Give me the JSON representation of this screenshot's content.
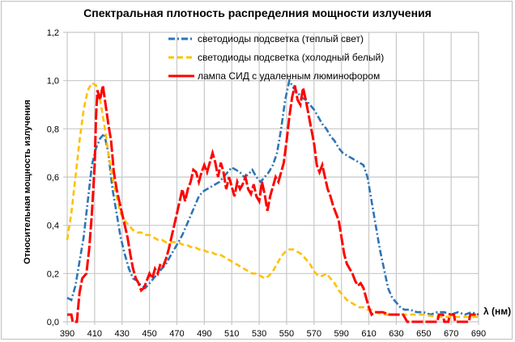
{
  "chart_data": {
    "type": "line",
    "title": "Спектральная плотность распределния мощности излучения",
    "xlabel": "λ (нм)",
    "ylabel": "Относительная мощность излучения",
    "xlim": [
      390,
      690
    ],
    "ylim": [
      0,
      1.2
    ],
    "x_ticks": [
      "390",
      "410",
      "430",
      "450",
      "470",
      "490",
      "510",
      "530",
      "550",
      "570",
      "590",
      "610",
      "630",
      "650",
      "670",
      "690"
    ],
    "y_ticks": [
      "0,0",
      "0,2",
      "0,4",
      "0,6",
      "0,8",
      "1,0",
      "1,2"
    ],
    "grid": true,
    "legend_position": "top-center",
    "series": [
      {
        "name": "светодиоды подсветка (теплый свет)",
        "color": "#2e75b6",
        "dash": "8,3,2,3",
        "points": [
          [
            390,
            0.1
          ],
          [
            393,
            0.09
          ],
          [
            396,
            0.15
          ],
          [
            399,
            0.25
          ],
          [
            402,
            0.35
          ],
          [
            405,
            0.5
          ],
          [
            408,
            0.65
          ],
          [
            411,
            0.72
          ],
          [
            414,
            0.76
          ],
          [
            417,
            0.78
          ],
          [
            420,
            0.7
          ],
          [
            423,
            0.55
          ],
          [
            426,
            0.45
          ],
          [
            429,
            0.35
          ],
          [
            432,
            0.28
          ],
          [
            435,
            0.22
          ],
          [
            438,
            0.18
          ],
          [
            441,
            0.17
          ],
          [
            444,
            0.15
          ],
          [
            447,
            0.14
          ],
          [
            450,
            0.16
          ],
          [
            453,
            0.18
          ],
          [
            456,
            0.2
          ],
          [
            459,
            0.22
          ],
          [
            462,
            0.24
          ],
          [
            465,
            0.27
          ],
          [
            468,
            0.3
          ],
          [
            471,
            0.33
          ],
          [
            474,
            0.36
          ],
          [
            477,
            0.4
          ],
          [
            480,
            0.44
          ],
          [
            483,
            0.48
          ],
          [
            486,
            0.52
          ],
          [
            489,
            0.54
          ],
          [
            492,
            0.55
          ],
          [
            495,
            0.56
          ],
          [
            498,
            0.57
          ],
          [
            501,
            0.58
          ],
          [
            504,
            0.6
          ],
          [
            507,
            0.62
          ],
          [
            510,
            0.64
          ],
          [
            513,
            0.63
          ],
          [
            516,
            0.62
          ],
          [
            519,
            0.6
          ],
          [
            522,
            0.61
          ],
          [
            525,
            0.63
          ],
          [
            528,
            0.6
          ],
          [
            531,
            0.58
          ],
          [
            534,
            0.6
          ],
          [
            537,
            0.62
          ],
          [
            540,
            0.65
          ],
          [
            543,
            0.7
          ],
          [
            546,
            0.8
          ],
          [
            549,
            0.92
          ],
          [
            552,
            1.0
          ],
          [
            555,
            0.97
          ],
          [
            558,
            0.95
          ],
          [
            561,
            0.93
          ],
          [
            564,
            0.92
          ],
          [
            567,
            0.9
          ],
          [
            570,
            0.88
          ],
          [
            573,
            0.85
          ],
          [
            576,
            0.82
          ],
          [
            579,
            0.8
          ],
          [
            582,
            0.77
          ],
          [
            585,
            0.75
          ],
          [
            588,
            0.72
          ],
          [
            591,
            0.7
          ],
          [
            594,
            0.69
          ],
          [
            597,
            0.68
          ],
          [
            600,
            0.67
          ],
          [
            603,
            0.66
          ],
          [
            606,
            0.65
          ],
          [
            609,
            0.6
          ],
          [
            612,
            0.5
          ],
          [
            615,
            0.4
          ],
          [
            618,
            0.3
          ],
          [
            621,
            0.22
          ],
          [
            624,
            0.14
          ],
          [
            627,
            0.1
          ],
          [
            630,
            0.08
          ],
          [
            633,
            0.06
          ],
          [
            636,
            0.05
          ],
          [
            640,
            0.05
          ],
          [
            645,
            0.04
          ],
          [
            650,
            0.04
          ],
          [
            655,
            0.03
          ],
          [
            660,
            0.04
          ],
          [
            665,
            0.04
          ],
          [
            670,
            0.03
          ],
          [
            675,
            0.04
          ],
          [
            680,
            0.03
          ],
          [
            685,
            0.04
          ],
          [
            690,
            0.03
          ]
        ]
      },
      {
        "name": "светодиоды подсветка (холодный белый)",
        "color": "#ffc000",
        "dash": "7,4",
        "points": [
          [
            390,
            0.34
          ],
          [
            393,
            0.45
          ],
          [
            396,
            0.6
          ],
          [
            399,
            0.75
          ],
          [
            402,
            0.88
          ],
          [
            405,
            0.96
          ],
          [
            408,
            0.99
          ],
          [
            411,
            0.98
          ],
          [
            414,
            0.92
          ],
          [
            417,
            0.82
          ],
          [
            420,
            0.7
          ],
          [
            423,
            0.6
          ],
          [
            426,
            0.52
          ],
          [
            429,
            0.45
          ],
          [
            432,
            0.42
          ],
          [
            435,
            0.4
          ],
          [
            438,
            0.38
          ],
          [
            441,
            0.37
          ],
          [
            444,
            0.37
          ],
          [
            447,
            0.36
          ],
          [
            450,
            0.36
          ],
          [
            453,
            0.35
          ],
          [
            456,
            0.34
          ],
          [
            459,
            0.34
          ],
          [
            462,
            0.33
          ],
          [
            465,
            0.33
          ],
          [
            468,
            0.33
          ],
          [
            471,
            0.33
          ],
          [
            474,
            0.32
          ],
          [
            477,
            0.32
          ],
          [
            480,
            0.31
          ],
          [
            483,
            0.31
          ],
          [
            486,
            0.3
          ],
          [
            489,
            0.3
          ],
          [
            492,
            0.29
          ],
          [
            495,
            0.29
          ],
          [
            498,
            0.28
          ],
          [
            501,
            0.28
          ],
          [
            504,
            0.27
          ],
          [
            507,
            0.26
          ],
          [
            510,
            0.25
          ],
          [
            513,
            0.24
          ],
          [
            516,
            0.23
          ],
          [
            519,
            0.22
          ],
          [
            522,
            0.21
          ],
          [
            525,
            0.2
          ],
          [
            528,
            0.2
          ],
          [
            531,
            0.19
          ],
          [
            534,
            0.18
          ],
          [
            537,
            0.19
          ],
          [
            540,
            0.21
          ],
          [
            543,
            0.24
          ],
          [
            546,
            0.27
          ],
          [
            549,
            0.29
          ],
          [
            552,
            0.3
          ],
          [
            555,
            0.3
          ],
          [
            558,
            0.29
          ],
          [
            561,
            0.28
          ],
          [
            564,
            0.26
          ],
          [
            567,
            0.24
          ],
          [
            570,
            0.21
          ],
          [
            573,
            0.19
          ],
          [
            576,
            0.19
          ],
          [
            579,
            0.2
          ],
          [
            582,
            0.18
          ],
          [
            585,
            0.16
          ],
          [
            588,
            0.13
          ],
          [
            591,
            0.11
          ],
          [
            594,
            0.09
          ],
          [
            597,
            0.08
          ],
          [
            600,
            0.07
          ],
          [
            603,
            0.06
          ],
          [
            606,
            0.06
          ],
          [
            609,
            0.05
          ],
          [
            612,
            0.05
          ],
          [
            615,
            0.04
          ],
          [
            620,
            0.03
          ],
          [
            625,
            0.03
          ],
          [
            630,
            0.03
          ],
          [
            640,
            0.03
          ],
          [
            650,
            0.03
          ],
          [
            660,
            0.02
          ],
          [
            670,
            0.02
          ],
          [
            680,
            0.02
          ],
          [
            690,
            0.02
          ]
        ]
      },
      {
        "name": "лампа СИД с удаленным люминофором",
        "color": "#ff0000",
        "dash": "14,3",
        "points": [
          [
            390,
            0.03
          ],
          [
            393,
            0.03
          ],
          [
            394,
            0.0
          ],
          [
            397,
            0.0
          ],
          [
            399,
            0.12
          ],
          [
            401,
            0.18
          ],
          [
            404,
            0.2
          ],
          [
            406,
            0.3
          ],
          [
            408,
            0.45
          ],
          [
            410,
            0.65
          ],
          [
            411,
            0.85
          ],
          [
            412,
            0.96
          ],
          [
            414,
            0.92
          ],
          [
            416,
            0.98
          ],
          [
            418,
            0.9
          ],
          [
            420,
            0.82
          ],
          [
            422,
            0.75
          ],
          [
            424,
            0.62
          ],
          [
            426,
            0.55
          ],
          [
            428,
            0.5
          ],
          [
            430,
            0.45
          ],
          [
            432,
            0.4
          ],
          [
            434,
            0.35
          ],
          [
            436,
            0.28
          ],
          [
            438,
            0.22
          ],
          [
            440,
            0.18
          ],
          [
            442,
            0.16
          ],
          [
            444,
            0.13
          ],
          [
            446,
            0.14
          ],
          [
            448,
            0.17
          ],
          [
            450,
            0.2
          ],
          [
            452,
            0.18
          ],
          [
            454,
            0.22
          ],
          [
            456,
            0.2
          ],
          [
            458,
            0.24
          ],
          [
            460,
            0.23
          ],
          [
            462,
            0.26
          ],
          [
            464,
            0.3
          ],
          [
            466,
            0.35
          ],
          [
            468,
            0.4
          ],
          [
            470,
            0.45
          ],
          [
            472,
            0.5
          ],
          [
            474,
            0.55
          ],
          [
            476,
            0.5
          ],
          [
            478,
            0.55
          ],
          [
            480,
            0.58
          ],
          [
            482,
            0.63
          ],
          [
            484,
            0.62
          ],
          [
            486,
            0.58
          ],
          [
            488,
            0.62
          ],
          [
            490,
            0.65
          ],
          [
            492,
            0.62
          ],
          [
            494,
            0.66
          ],
          [
            496,
            0.7
          ],
          [
            498,
            0.66
          ],
          [
            500,
            0.6
          ],
          [
            502,
            0.66
          ],
          [
            504,
            0.62
          ],
          [
            506,
            0.55
          ],
          [
            508,
            0.6
          ],
          [
            510,
            0.56
          ],
          [
            512,
            0.52
          ],
          [
            514,
            0.58
          ],
          [
            516,
            0.55
          ],
          [
            518,
            0.57
          ],
          [
            520,
            0.6
          ],
          [
            522,
            0.55
          ],
          [
            524,
            0.53
          ],
          [
            526,
            0.57
          ],
          [
            528,
            0.52
          ],
          [
            530,
            0.5
          ],
          [
            532,
            0.58
          ],
          [
            534,
            0.53
          ],
          [
            536,
            0.46
          ],
          [
            538,
            0.52
          ],
          [
            540,
            0.56
          ],
          [
            542,
            0.6
          ],
          [
            544,
            0.58
          ],
          [
            546,
            0.62
          ],
          [
            548,
            0.66
          ],
          [
            550,
            0.75
          ],
          [
            552,
            0.85
          ],
          [
            554,
            0.93
          ],
          [
            556,
            0.98
          ],
          [
            558,
            0.92
          ],
          [
            560,
            0.9
          ],
          [
            562,
            0.97
          ],
          [
            564,
            0.92
          ],
          [
            566,
            0.86
          ],
          [
            568,
            0.8
          ],
          [
            570,
            0.74
          ],
          [
            572,
            0.65
          ],
          [
            574,
            0.62
          ],
          [
            576,
            0.65
          ],
          [
            578,
            0.6
          ],
          [
            580,
            0.55
          ],
          [
            582,
            0.52
          ],
          [
            584,
            0.48
          ],
          [
            586,
            0.45
          ],
          [
            588,
            0.42
          ],
          [
            590,
            0.35
          ],
          [
            592,
            0.28
          ],
          [
            594,
            0.24
          ],
          [
            596,
            0.22
          ],
          [
            598,
            0.2
          ],
          [
            600,
            0.17
          ],
          [
            602,
            0.15
          ],
          [
            604,
            0.16
          ],
          [
            606,
            0.14
          ],
          [
            608,
            0.1
          ],
          [
            610,
            0.06
          ],
          [
            612,
            0.03
          ],
          [
            614,
            0.04
          ],
          [
            618,
            0.04
          ],
          [
            620,
            0.04
          ],
          [
            625,
            0.03
          ],
          [
            630,
            0.03
          ],
          [
            635,
            0.03
          ],
          [
            638,
            0.0
          ],
          [
            645,
            0.0
          ],
          [
            655,
            0.0
          ],
          [
            660,
            0.0
          ],
          [
            661,
            0.03
          ],
          [
            664,
            0.03
          ],
          [
            665,
            0.0
          ],
          [
            668,
            0.0
          ],
          [
            669,
            0.03
          ],
          [
            672,
            0.03
          ],
          [
            673,
            0.0
          ],
          [
            683,
            0.0
          ],
          [
            684,
            0.03
          ],
          [
            690,
            0.03
          ]
        ]
      }
    ]
  }
}
